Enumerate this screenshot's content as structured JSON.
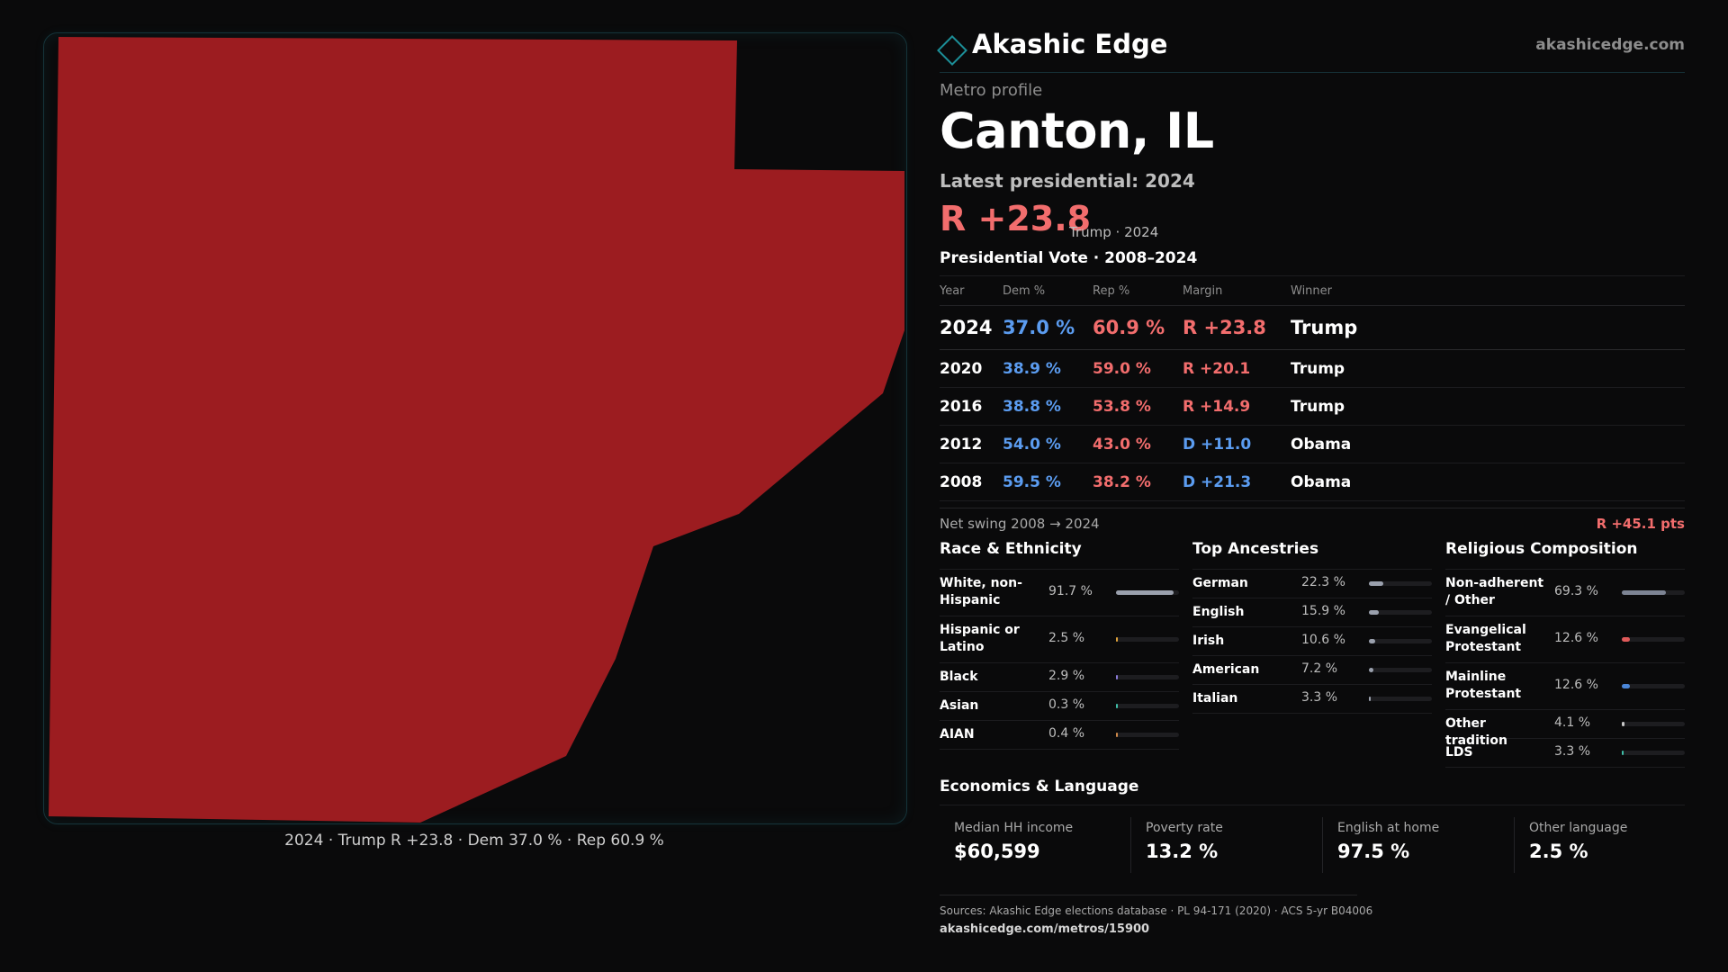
{
  "map": {
    "fill_color": "#9c1c20",
    "caption": "2024 · Trump R +23.8 · Dem 37.0 % · Rep 60.9 %"
  },
  "header": {
    "brand": "Akashic Edge",
    "url": "akashicedge.com"
  },
  "profile": {
    "eyebrow": "Metro profile",
    "title": "Canton, IL",
    "latest_label": "Latest presidential: 2024",
    "margin": "R +23.8",
    "margin_sub": "Trump · 2024"
  },
  "vote": {
    "heading": "Presidential Vote · 2008–2024",
    "columns": [
      "Year",
      "Dem %",
      "Rep %",
      "Margin",
      "Winner"
    ],
    "rows": [
      {
        "year": "2024",
        "dem": "37.0 %",
        "rep": "60.9 %",
        "margin": "R +23.8",
        "winner": "Trump"
      },
      {
        "year": "2020",
        "dem": "38.9 %",
        "rep": "59.0 %",
        "margin": "R +20.1",
        "winner": "Trump"
      },
      {
        "year": "2016",
        "dem": "38.8 %",
        "rep": "53.8 %",
        "margin": "R +14.9",
        "winner": "Trump"
      },
      {
        "year": "2012",
        "dem": "54.0 %",
        "rep": "43.0 %",
        "margin": "D +11.0",
        "winner": "Obama"
      },
      {
        "year": "2008",
        "dem": "59.5 %",
        "rep": "38.2 %",
        "margin": "D +21.3",
        "winner": "Obama"
      }
    ],
    "swing_label": "Net swing 2008 → 2024",
    "swing_value": "R +45.1 pts"
  },
  "race": {
    "heading": "Race & Ethnicity",
    "rows": [
      {
        "label": "White, non-Hispanic",
        "value": "91.7 %",
        "pct": 91.7,
        "color": "#9aa0ad"
      },
      {
        "label": "Hispanic or Latino",
        "value": "2.5 %",
        "pct": 2.5,
        "color": "#e0a33a"
      },
      {
        "label": "Black",
        "value": "2.9 %",
        "pct": 2.9,
        "color": "#8a7ad8"
      },
      {
        "label": "Asian",
        "value": "0.3 %",
        "pct": 0.3,
        "color": "#3fbfa8"
      },
      {
        "label": "AIAN",
        "value": "0.4 %",
        "pct": 0.4,
        "color": "#d08a4a"
      }
    ]
  },
  "ancestry": {
    "heading": "Top Ancestries",
    "rows": [
      {
        "label": "German",
        "value": "22.3 %",
        "pct": 22.3,
        "color": "#9aa0ad"
      },
      {
        "label": "English",
        "value": "15.9 %",
        "pct": 15.9,
        "color": "#9aa0ad"
      },
      {
        "label": "Irish",
        "value": "10.6 %",
        "pct": 10.6,
        "color": "#9aa0ad"
      },
      {
        "label": "American",
        "value": "7.2 %",
        "pct": 7.2,
        "color": "#9aa0ad"
      },
      {
        "label": "Italian",
        "value": "3.3 %",
        "pct": 3.3,
        "color": "#9aa0ad"
      }
    ]
  },
  "religion": {
    "heading": "Religious Composition",
    "rows": [
      {
        "label": "Non-adherent / Other",
        "value": "69.3 %",
        "pct": 69.3,
        "color": "#7d8494"
      },
      {
        "label": "Evangelical Protestant",
        "value": "12.6 %",
        "pct": 12.6,
        "color": "#e05a5a"
      },
      {
        "label": "Mainline Protestant",
        "value": "12.6 %",
        "pct": 12.6,
        "color": "#4a86d8"
      },
      {
        "label": "Other tradition",
        "value": "4.1 %",
        "pct": 4.1,
        "color": "#c8c8c8"
      },
      {
        "label": "LDS",
        "value": "3.3 %",
        "pct": 3.3,
        "color": "#3fbfa8"
      }
    ]
  },
  "economics": {
    "heading": "Economics & Language",
    "items": [
      {
        "label": "Median HH income",
        "value": "$60,599"
      },
      {
        "label": "Poverty rate",
        "value": "13.2 %"
      },
      {
        "label": "English at home",
        "value": "97.5 %"
      },
      {
        "label": "Other language",
        "value": "2.5 %"
      }
    ]
  },
  "footer": {
    "sources": "Sources: Akashic Edge elections database · PL 94-171 (2020) · ACS 5-yr B04006",
    "url": "akashicedge.com/metros/15900"
  }
}
